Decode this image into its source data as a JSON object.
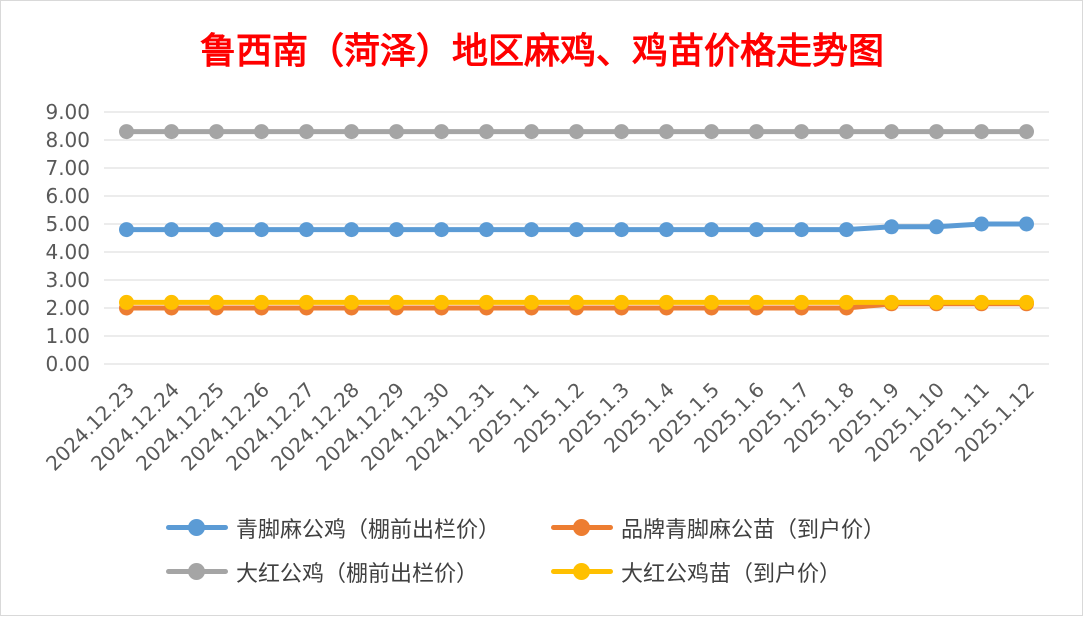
{
  "chart_data": {
    "type": "line",
    "title": "鲁西南（菏泽）地区麻鸡、鸡苗价格走势图",
    "title_color": "#ff0000",
    "categories": [
      "2024.12.23",
      "2024.12.24",
      "2024.12.25",
      "2024.12.26",
      "2024.12.27",
      "2024.12.28",
      "2024.12.29",
      "2024.12.30",
      "2024.12.31",
      "2025.1.1",
      "2025.1.2",
      "2025.1.3",
      "2025.1.4",
      "2025.1.5",
      "2025.1.6",
      "2025.1.7",
      "2025.1.8",
      "2025.1.9",
      "2025.1.10",
      "2025.1.11",
      "2025.1.12"
    ],
    "ylim": [
      0,
      9
    ],
    "y_ticks": [
      "0.00",
      "1.00",
      "2.00",
      "3.00",
      "4.00",
      "5.00",
      "6.00",
      "7.00",
      "8.00",
      "9.00"
    ],
    "grid": true,
    "legend_position": "bottom",
    "series": [
      {
        "name": "青脚麻公鸡（棚前出栏价）",
        "color": "#5b9bd5",
        "values": [
          4.8,
          4.8,
          4.8,
          4.8,
          4.8,
          4.8,
          4.8,
          4.8,
          4.8,
          4.8,
          4.8,
          4.8,
          4.8,
          4.8,
          4.8,
          4.8,
          4.8,
          4.9,
          4.9,
          5.0,
          5.0
        ]
      },
      {
        "name": "品牌青脚麻公苗（到户价）",
        "color": "#ed7d31",
        "values": [
          2.0,
          2.0,
          2.0,
          2.0,
          2.0,
          2.0,
          2.0,
          2.0,
          2.0,
          2.0,
          2.0,
          2.0,
          2.0,
          2.0,
          2.0,
          2.0,
          2.0,
          2.15,
          2.15,
          2.15,
          2.15
        ]
      },
      {
        "name": "大红公鸡（棚前出栏价）",
        "color": "#a5a5a5",
        "values": [
          8.3,
          8.3,
          8.3,
          8.3,
          8.3,
          8.3,
          8.3,
          8.3,
          8.3,
          8.3,
          8.3,
          8.3,
          8.3,
          8.3,
          8.3,
          8.3,
          8.3,
          8.3,
          8.3,
          8.3,
          8.3
        ]
      },
      {
        "name": "大红公鸡苗（到户价）",
        "color": "#ffc000",
        "values": [
          2.2,
          2.2,
          2.2,
          2.2,
          2.2,
          2.2,
          2.2,
          2.2,
          2.2,
          2.2,
          2.2,
          2.2,
          2.2,
          2.2,
          2.2,
          2.2,
          2.2,
          2.2,
          2.2,
          2.2,
          2.2
        ]
      }
    ],
    "draw_order": [
      2,
      0,
      1,
      3
    ]
  }
}
